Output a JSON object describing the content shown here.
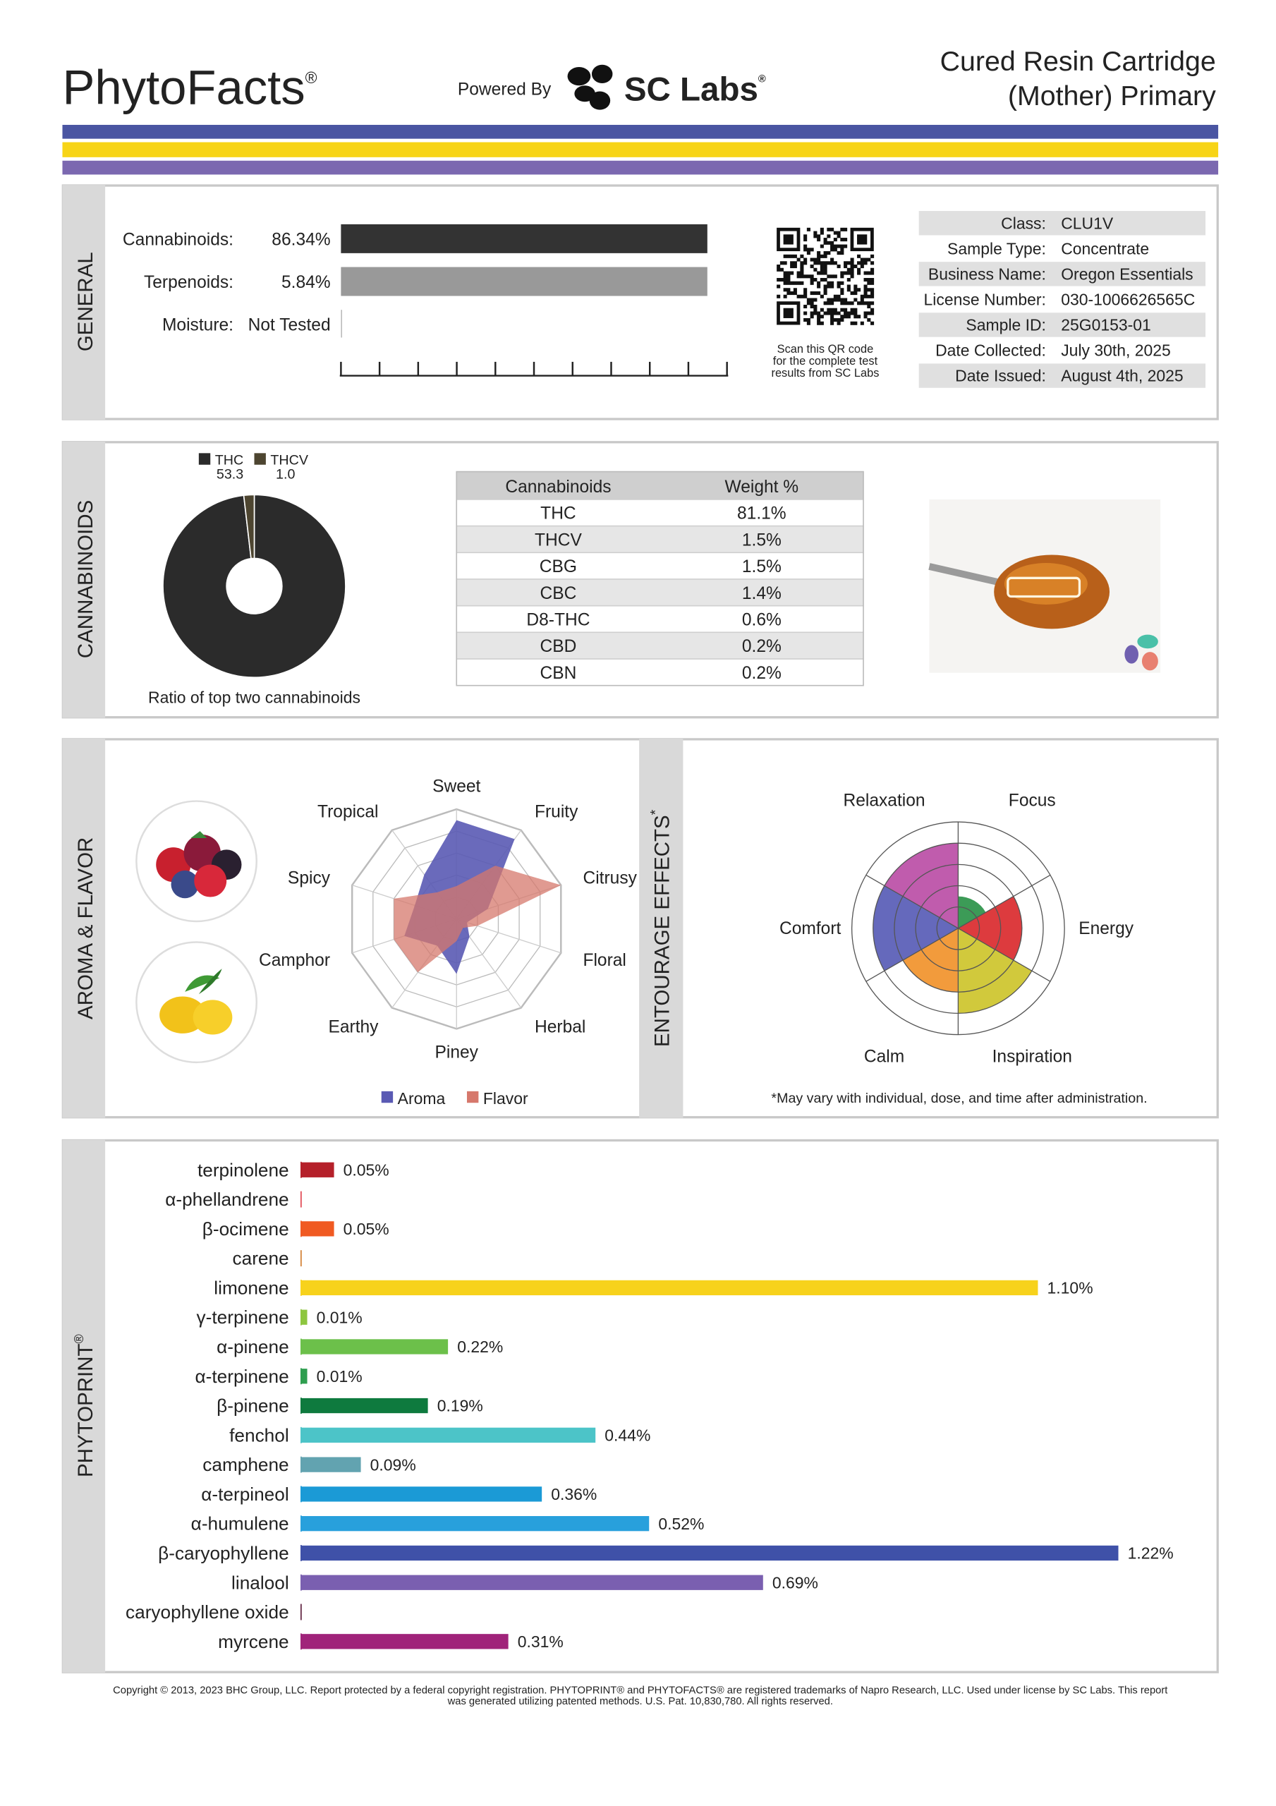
{
  "header": {
    "brand": "PhytoFacts",
    "brand_mark": "®",
    "powered_by": "Powered By",
    "lab": "SC Labs",
    "lab_mark": "®",
    "title": [
      "Cured Resin Cartridge",
      "(Mother) Primary"
    ]
  },
  "general": {
    "section": "GENERAL",
    "potency": [
      {
        "label": "Cannabinoids:",
        "value": "86.34%"
      },
      {
        "label": "Terpenoids:",
        "value": "5.84%"
      },
      {
        "label": "Moisture:",
        "value": "Not Tested"
      }
    ],
    "qr_caption": [
      "Scan this QR code",
      "for the complete test",
      "results from SC Labs"
    ],
    "info": [
      [
        "Class:",
        "CLU1V"
      ],
      [
        "Sample Type:",
        "Concentrate"
      ],
      [
        "Business Name:",
        "Oregon Essentials"
      ],
      [
        "License Number:",
        "030-1006626565C"
      ],
      [
        "Sample ID:",
        "25G0153-01"
      ],
      [
        "Date Collected:",
        "July 30th, 2025"
      ],
      [
        "Date Issued:",
        "August 4th, 2025"
      ]
    ]
  },
  "cannabinoids": {
    "section": "CANNABINOIDS",
    "pie": {
      "type": "pie",
      "categories": [
        "THC",
        "THCV"
      ],
      "values": [
        53.3,
        1
      ],
      "value_labels": [
        "53.3",
        "1.0"
      ],
      "colors": [
        "#2b2b2b",
        "#4d4530"
      ],
      "caption": "Ratio of top two cannabinoids"
    },
    "table": {
      "columns": [
        "Cannabinoids",
        "Weight %"
      ],
      "rows": [
        [
          "THC",
          "81.1%"
        ],
        [
          "THCV",
          "1.5%"
        ],
        [
          "CBG",
          "1.5%"
        ],
        [
          "CBC",
          "1.4%"
        ],
        [
          "D8-THC",
          "0.6%"
        ],
        [
          "CBD",
          "0.2%"
        ],
        [
          "CBN",
          "0.2%"
        ]
      ]
    }
  },
  "aroma_flavor": {
    "section": "AROMA & FLAVOR",
    "radar": {
      "type": "radar",
      "categories": [
        "Sweet",
        "Fruity",
        "Citrusy",
        "Floral",
        "Herbal",
        "Piney",
        "Earthy",
        "Camphor",
        "Spicy",
        "Tropical"
      ],
      "rlim": [
        0,
        5
      ],
      "rticks": [
        1,
        2,
        3,
        4,
        5
      ],
      "series": [
        {
          "name": "Aroma",
          "color": "#5a5ab4",
          "values": [
            4.5,
            4.5,
            1.5,
            0.5,
            1,
            2.5,
            1.5,
            2.5,
            2,
            2.5
          ]
        },
        {
          "name": "Flavor",
          "color": "#d6786c",
          "values": [
            1.5,
            3,
            5,
            1,
            0.5,
            1,
            3,
            3,
            3,
            1.5
          ]
        }
      ]
    }
  },
  "entourage": {
    "section": "ENTOURAGE EFFECTS",
    "section_mark": "*",
    "chart": {
      "type": "polar-area",
      "categories": [
        "Focus",
        "Energy",
        "Inspiration",
        "Calm",
        "Comfort",
        "Relaxation"
      ],
      "values": [
        1.5,
        3,
        4,
        3,
        4,
        4
      ],
      "colors": [
        "#1a8a3a",
        "#d7191c",
        "#c9c01a",
        "#f08a1a",
        "#4a4fb0",
        "#b5409f"
      ],
      "rlim": [
        0,
        5
      ],
      "rticks": [
        1,
        2,
        3,
        4,
        5
      ]
    },
    "footnote": "*May vary with individual, dose, and time after administration."
  },
  "phytoprint": {
    "section": "PHYTOPRINT",
    "section_mark": "®",
    "chart": {
      "type": "bar",
      "orientation": "horizontal",
      "categories": [
        "terpinolene",
        "α-phellandrene",
        "β-ocimene",
        "carene",
        "limonene",
        "γ-terpinene",
        "α-pinene",
        "α-terpinene",
        "β-pinene",
        "fenchol",
        "camphene",
        "α-terpineol",
        "α-humulene",
        "β-caryophyllene",
        "linalool",
        "caryophyllene oxide",
        "myrcene"
      ],
      "values": [
        0.05,
        null,
        0.05,
        null,
        1.1,
        0.01,
        0.22,
        0.01,
        0.19,
        0.44,
        0.09,
        0.36,
        0.52,
        1.22,
        0.69,
        null,
        0.31
      ],
      "value_labels": [
        "0.05%",
        null,
        "0.05%",
        null,
        "1.10%",
        "0.01%",
        "0.22%",
        "0.01%",
        "0.19%",
        "0.44%",
        "0.09%",
        "0.36%",
        "0.52%",
        "1.22%",
        "0.69%",
        null,
        "0.31%"
      ],
      "colors": [
        "#b5202a",
        "#e0404a",
        "#f05a22",
        "#d07a2a",
        "#f7d21c",
        "#8dc63f",
        "#6cc04a",
        "#2e9e4f",
        "#0e7a3e",
        "#4cc4c8",
        "#62a3b0",
        "#1b9ad6",
        "#28a0dc",
        "#3f51a8",
        "#7a5fb0",
        "#5a1a3a",
        "#a0237a"
      ],
      "xlim": [
        0,
        1.3
      ]
    }
  },
  "footer": {
    "copyright": [
      "Copyright © 2013, 2023 BHC Group, LLC. Report protected by a federal copyright registration. PHYTOPRINT® and PHYTOFACTS® are registered trademarks of Napro Research, LLC. Used under license by SC Labs. This report",
      "was generated utilizing patented methods. U.S. Pat. 10,830,780. All rights reserved."
    ]
  }
}
